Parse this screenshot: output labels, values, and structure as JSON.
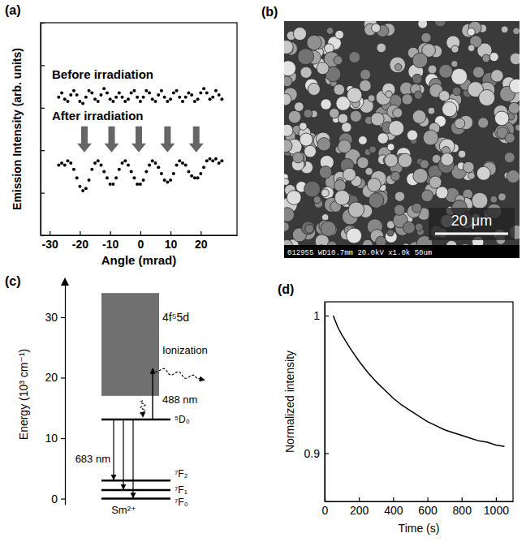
{
  "chart_data": [
    {
      "type": "scatter",
      "panel_label": "(a)",
      "xlabel": "Angle (mrad)",
      "ylabel": "Emission Intensity (arb. units)",
      "x": [
        -27,
        -26,
        -25,
        -24,
        -23,
        -22,
        -21,
        -20,
        -19,
        -18,
        -17,
        -16,
        -15,
        -14,
        -13,
        -12,
        -11,
        -10,
        -9,
        -8,
        -7,
        -6,
        -5,
        -4,
        -3,
        -2,
        -1,
        0,
        1,
        2,
        3,
        4,
        5,
        6,
        7,
        8,
        9,
        10,
        11,
        12,
        13,
        14,
        15,
        16,
        17,
        18,
        19,
        20,
        21,
        22,
        23,
        24,
        25,
        26,
        27
      ],
      "series": [
        {
          "name": "Before irradiation",
          "color": "#000000",
          "values": [
            6.5,
            6.7,
            6.4,
            6.3,
            6.6,
            6.8,
            6.6,
            6.3,
            6.2,
            6.5,
            6.8,
            6.7,
            6.4,
            6.3,
            6.6,
            6.9,
            6.7,
            6.4,
            6.3,
            6.5,
            6.7,
            6.5,
            6.3,
            6.4,
            6.7,
            6.8,
            6.5,
            6.3,
            6.5,
            6.8,
            6.7,
            6.4,
            6.3,
            6.6,
            6.8,
            6.5,
            6.3,
            6.4,
            6.7,
            6.8,
            6.5,
            6.3,
            6.5,
            6.7,
            6.6,
            6.3,
            6.4,
            6.7,
            6.9,
            6.7,
            6.4,
            6.5,
            6.8,
            6.6,
            6.4
          ]
        },
        {
          "name": "After irradiation",
          "color": "#000000",
          "values": [
            3.3,
            3.4,
            3.3,
            3.5,
            3.4,
            3.1,
            2.7,
            2.3,
            2.1,
            2.2,
            2.6,
            3.1,
            3.4,
            3.5,
            3.3,
            3.0,
            2.7,
            2.4,
            2.4,
            2.7,
            3.1,
            3.4,
            3.5,
            3.3,
            3.0,
            2.7,
            2.4,
            2.4,
            2.6,
            3.0,
            3.3,
            3.5,
            3.4,
            3.2,
            2.9,
            2.6,
            2.5,
            2.6,
            2.9,
            3.3,
            3.5,
            3.4,
            3.3,
            3.0,
            2.8,
            2.7,
            2.7,
            2.9,
            3.2,
            3.5,
            3.6,
            3.5,
            3.6,
            3.4,
            3.5
          ]
        }
      ],
      "arrow_x": [
        -18.5,
        -9.5,
        -0.5,
        9.0,
        18.5
      ],
      "xlim": [
        -33,
        32
      ],
      "ylim": [
        0,
        10
      ],
      "xticks": [
        -30,
        -20,
        -10,
        0,
        10,
        20
      ],
      "yticks": [
        0,
        2,
        4,
        6,
        8,
        10
      ],
      "tick_labels": "x",
      "marker": "circle"
    },
    {
      "type": "energy_levels",
      "panel_label": "(c)",
      "ylabel": "Energy (10³ cm⁻¹)",
      "ylim": [
        -1,
        35.5
      ],
      "yticks": [
        0,
        10,
        20,
        30
      ],
      "levels": [
        {
          "name": "⁷F₀",
          "value": 0
        },
        {
          "name": "⁷F₁",
          "value": 1.4
        },
        {
          "name": "⁷F₂",
          "value": 3.0
        },
        {
          "name": "⁵D₀",
          "value": 13.1
        }
      ],
      "band": {
        "name": "4f⁵5d",
        "values": [
          17,
          34
        ]
      },
      "emission": {
        "label": "683 nm"
      },
      "excitation": {
        "label": "488 nm",
        "values": [
          13.1,
          21.5
        ]
      },
      "ionization": {
        "label": "Ionization"
      },
      "ion_label": "Sm²⁺"
    },
    {
      "type": "line",
      "panel_label": "(d)",
      "xlabel": "Time (s)",
      "ylabel": "Normalized intensity",
      "x": [
        50,
        75,
        100,
        150,
        200,
        250,
        300,
        350,
        400,
        450,
        500,
        550,
        600,
        650,
        700,
        750,
        800,
        850,
        900,
        950,
        1000,
        1050
      ],
      "values": [
        1.0,
        0.992,
        0.986,
        0.976,
        0.967,
        0.959,
        0.952,
        0.946,
        0.94,
        0.935,
        0.931,
        0.927,
        0.923,
        0.92,
        0.917,
        0.915,
        0.913,
        0.911,
        0.909,
        0.908,
        0.906,
        0.905
      ],
      "xlim": [
        0,
        1100
      ],
      "ylim": [
        0.865,
        1.01
      ],
      "xticks": [
        0,
        200,
        400,
        600,
        800,
        1000
      ],
      "yticks": [
        0.9,
        1
      ],
      "color": "#000000",
      "line_style": "solid"
    }
  ],
  "image_panel": {
    "panel_label": "(b)",
    "scale_bar": "20 μm",
    "caption": "012955 WD10.7mm 20.0kV x1.0k 50um"
  }
}
